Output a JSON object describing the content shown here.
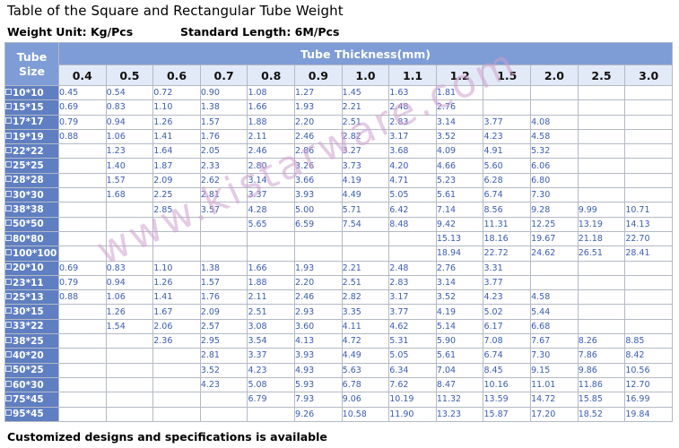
{
  "title": "Table of the Square and Rectangular Tube Weight",
  "weight_unit": "Weight Unit: Kg/Pcs",
  "standard_length": "Standard Length: 6M/Pcs",
  "table": {
    "corner_label": "Tube Size",
    "thickness_title": "Tube Thickness(mm)",
    "thickness": [
      "0.4",
      "0.5",
      "0.6",
      "0.7",
      "0.8",
      "0.9",
      "1.0",
      "1.1",
      "1.2",
      "1.5",
      "2.0",
      "2.5",
      "3.0"
    ],
    "rows": [
      {
        "size": "10*10",
        "values": [
          "0.45",
          "0.54",
          "0.72",
          "0.90",
          "1.08",
          "1.27",
          "1.45",
          "1.63",
          "1.81",
          "",
          "",
          "",
          ""
        ]
      },
      {
        "size": "15*15",
        "values": [
          "0.69",
          "0.83",
          "1.10",
          "1.38",
          "1.66",
          "1.93",
          "2.21",
          "2.48",
          "2.76",
          "",
          "",
          "",
          ""
        ]
      },
      {
        "size": "17*17",
        "values": [
          "0.79",
          "0.94",
          "1.26",
          "1.57",
          "1.88",
          "2.20",
          "2.51",
          "2.83",
          "3.14",
          "3.77",
          "4.08",
          "",
          ""
        ]
      },
      {
        "size": "19*19",
        "values": [
          "0.88",
          "1.06",
          "1.41",
          "1.76",
          "2.11",
          "2.46",
          "2.82",
          "3.17",
          "3.52",
          "4.23",
          "4.58",
          "",
          ""
        ]
      },
      {
        "size": "22*22",
        "values": [
          "",
          "1.23",
          "1.64",
          "2.05",
          "2.46",
          "2.86",
          "3.27",
          "3.68",
          "4.09",
          "4.91",
          "5.32",
          "",
          ""
        ]
      },
      {
        "size": "25*25",
        "values": [
          "",
          "1.40",
          "1.87",
          "2.33",
          "2.80",
          "3.26",
          "3.73",
          "4.20",
          "4.66",
          "5.60",
          "6.06",
          "",
          ""
        ]
      },
      {
        "size": "28*28",
        "values": [
          "",
          "1.57",
          "2.09",
          "2.62",
          "3.14",
          "3.66",
          "4.19",
          "4.71",
          "5.23",
          "6.28",
          "6.80",
          "",
          ""
        ]
      },
      {
        "size": "30*30",
        "values": [
          "",
          "1.68",
          "2.25",
          "2.81",
          "3.37",
          "3.93",
          "4.49",
          "5.05",
          "5.61",
          "6.74",
          "7.30",
          "",
          ""
        ]
      },
      {
        "size": "38*38",
        "values": [
          "",
          "",
          "2.85",
          "3.57",
          "4.28",
          "5.00",
          "5.71",
          "6.42",
          "7.14",
          "8.56",
          "9.28",
          "9.99",
          "10.71"
        ]
      },
      {
        "size": "50*50",
        "values": [
          "",
          "",
          "",
          "",
          "5.65",
          "6.59",
          "7.54",
          "8.48",
          "9.42",
          "11.31",
          "12.25",
          "13.19",
          "14.13"
        ]
      },
      {
        "size": "80*80",
        "values": [
          "",
          "",
          "",
          "",
          "",
          "",
          "",
          "",
          "15.13",
          "18.16",
          "19.67",
          "21.18",
          "22.70"
        ]
      },
      {
        "size": "100*100",
        "values": [
          "",
          "",
          "",
          "",
          "",
          "",
          "",
          "",
          "18.94",
          "22.72",
          "24.62",
          "26.51",
          "28.41"
        ]
      },
      {
        "size": "20*10",
        "values": [
          "0.69",
          "0.83",
          "1.10",
          "1.38",
          "1.66",
          "1.93",
          "2.21",
          "2.48",
          "2.76",
          "3.31",
          "",
          "",
          ""
        ]
      },
      {
        "size": "23*11",
        "values": [
          "0.79",
          "0.94",
          "1.26",
          "1.57",
          "1.88",
          "2.20",
          "2.51",
          "2.83",
          "3.14",
          "3.77",
          "",
          "",
          ""
        ]
      },
      {
        "size": "25*13",
        "values": [
          "0.88",
          "1.06",
          "1.41",
          "1.76",
          "2.11",
          "2.46",
          "2.82",
          "3.17",
          "3.52",
          "4.23",
          "4.58",
          "",
          ""
        ]
      },
      {
        "size": "30*15",
        "values": [
          "",
          "1.26",
          "1.67",
          "2.09",
          "2.51",
          "2.93",
          "3.35",
          "3.77",
          "4.19",
          "5.02",
          "5.44",
          "",
          ""
        ]
      },
      {
        "size": "33*22",
        "values": [
          "",
          "1.54",
          "2.06",
          "2.57",
          "3.08",
          "3.60",
          "4.11",
          "4.62",
          "5.14",
          "6.17",
          "6.68",
          "",
          ""
        ]
      },
      {
        "size": "38*25",
        "values": [
          "",
          "",
          "2.36",
          "2.95",
          "3.54",
          "4.13",
          "4.72",
          "5.31",
          "5.90",
          "7.08",
          "7.67",
          "8.26",
          "8.85"
        ]
      },
      {
        "size": "40*20",
        "values": [
          "",
          "",
          "",
          "2.81",
          "3.37",
          "3.93",
          "4.49",
          "5.05",
          "5.61",
          "6.74",
          "7.30",
          "7.86",
          "8.42"
        ]
      },
      {
        "size": "50*25",
        "values": [
          "",
          "",
          "",
          "3.52",
          "4.23",
          "4.93",
          "5.63",
          "6.34",
          "7.04",
          "8.45",
          "9.15",
          "9.86",
          "10.56"
        ]
      },
      {
        "size": "60*30",
        "values": [
          "",
          "",
          "",
          "4.23",
          "5.08",
          "5.93",
          "6.78",
          "7.62",
          "8.47",
          "10.16",
          "11.01",
          "11.86",
          "12.70"
        ]
      },
      {
        "size": "75*45",
        "values": [
          "",
          "",
          "",
          "",
          "6.79",
          "7.93",
          "9.06",
          "10.19",
          "11.32",
          "13.59",
          "14.72",
          "15.85",
          "16.99"
        ]
      },
      {
        "size": "95*45",
        "values": [
          "",
          "",
          "",
          "",
          "",
          "9.26",
          "10.58",
          "11.90",
          "13.23",
          "15.87",
          "17.20",
          "18.52",
          "19.84"
        ]
      }
    ]
  },
  "watermark": "www.kistarware.com",
  "footer": "Customized designs and specifications is available",
  "colors": {
    "header_blue": "#7e9cd6",
    "size_blue": "#5f7fc2",
    "value_text": "#3a5cb0",
    "watermark": "#cda0cd"
  }
}
